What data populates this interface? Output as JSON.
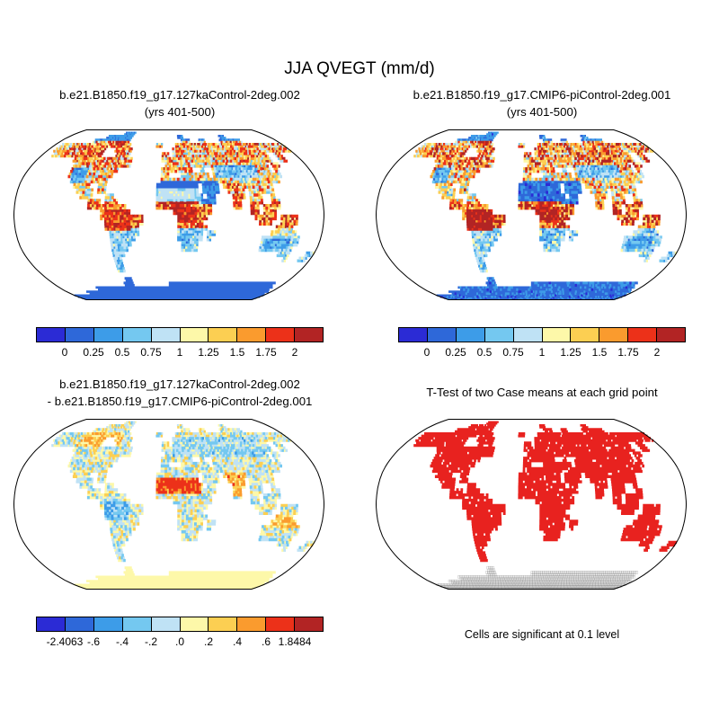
{
  "figure": {
    "title": "JJA QVEGT (mm/d)",
    "significance_note": "Cells are significant at 0.1 level"
  },
  "panels": [
    {
      "title_line1": "b.e21.B1850.f19_g17.127kaControl-2deg.002",
      "title_line2": "(yrs 401-500)"
    },
    {
      "title_line1": "b.e21.B1850.f19_g17.CMIP6-piControl-2deg.001",
      "title_line2": "(yrs 401-500)"
    },
    {
      "title_line1": "b.e21.B1850.f19_g17.127kaControl-2deg.002",
      "title_line2": "- b.e21.B1850.f19_g17.CMIP6-piControl-2deg.001"
    },
    {
      "title_line1": "T-Test of two Case means at each grid point",
      "title_line2": ""
    }
  ],
  "chart_data": {
    "type": "heatmap",
    "projection": "robinson",
    "variable": "QVEGT",
    "season": "JJA",
    "units": "mm/d",
    "colorbar_mean": {
      "tick_labels": [
        "0",
        "0.25",
        "0.5",
        "0.75",
        "1",
        "1.25",
        "1.5",
        "1.75",
        "2"
      ],
      "levels": [
        0,
        0.25,
        0.5,
        0.75,
        1,
        1.25,
        1.5,
        1.75,
        2
      ],
      "colors": [
        "#2b2bd5",
        "#2e68d9",
        "#3d9ce8",
        "#74c8f0",
        "#bfe2f5",
        "#fdf8a9",
        "#fccf52",
        "#fa9b2e",
        "#ec3119",
        "#b22424"
      ]
    },
    "colorbar_diff": {
      "tick_labels": [
        "-2.4063",
        "-.6",
        "-.4",
        "-.2",
        ".0",
        ".2",
        ".4",
        ".6",
        "1.8484"
      ],
      "levels": [
        -2.4063,
        -0.6,
        -0.4,
        -0.2,
        0,
        0.2,
        0.4,
        0.6,
        1.8484
      ],
      "min": -2.4063,
      "max": 1.8484,
      "colors": [
        "#2b2bd5",
        "#2e68d9",
        "#3d9ce8",
        "#74c8f0",
        "#bfe2f5",
        "#fdf8a9",
        "#fccf52",
        "#fa9b2e",
        "#ec3119",
        "#b22424"
      ]
    },
    "ttest": {
      "significant_color": "#e8221f",
      "significance_level": 0.1
    },
    "land_mask_runs": [
      [],
      [
        [
          19,
          22
        ]
      ],
      [
        [
          14,
          22
        ],
        [
          39,
          40
        ],
        [
          54,
          55
        ]
      ],
      [
        [
          11,
          22
        ],
        [
          40,
          42
        ],
        [
          46,
          47
        ],
        [
          53,
          59
        ]
      ],
      [
        [
          2,
          23
        ],
        [
          32,
          33
        ],
        [
          38,
          71
        ]
      ],
      [
        [
          2,
          16
        ],
        [
          20,
          24
        ],
        [
          37,
          71
        ]
      ],
      [
        [
          3,
          16
        ],
        [
          21,
          24
        ],
        [
          34,
          35
        ],
        [
          37,
          63
        ],
        [
          66,
          67
        ]
      ],
      [
        [
          10,
          25
        ],
        [
          34,
          35
        ],
        [
          36,
          63
        ],
        [
          66,
          67
        ]
      ],
      [
        [
          11,
          25
        ],
        [
          35,
          61
        ],
        [
          63,
          64
        ]
      ],
      [
        [
          11,
          22
        ],
        [
          34,
          41
        ],
        [
          44,
          44
        ],
        [
          47,
          61
        ],
        [
          63,
          63
        ]
      ],
      [
        [
          11,
          21
        ],
        [
          34,
          35
        ],
        [
          39,
          45
        ],
        [
          47,
          63
        ]
      ],
      [
        [
          12,
          20
        ],
        [
          34,
          62
        ]
      ],
      [
        [
          13,
          16
        ],
        [
          19,
          20
        ],
        [
          33,
          42
        ],
        [
          44,
          47
        ],
        [
          49,
          60
        ]
      ],
      [
        [
          14,
          17
        ],
        [
          19,
          20
        ],
        [
          33,
          42
        ],
        [
          44,
          47
        ],
        [
          50,
          53
        ],
        [
          55,
          60
        ]
      ],
      [
        [
          15,
          17
        ],
        [
          21,
          22
        ],
        [
          33,
          43
        ],
        [
          45,
          46
        ],
        [
          51,
          53
        ],
        [
          55,
          57
        ],
        [
          60,
          60
        ]
      ],
      [
        [
          17,
          19
        ],
        [
          21,
          23
        ],
        [
          33,
          46
        ],
        [
          51,
          52
        ],
        [
          55,
          57
        ],
        [
          60,
          61
        ]
      ],
      [
        [
          17,
          25
        ],
        [
          33,
          45
        ],
        [
          51,
          52
        ],
        [
          55,
          56
        ],
        [
          58,
          61
        ]
      ],
      [
        [
          20,
          26
        ],
        [
          37,
          45
        ],
        [
          55,
          56
        ],
        [
          58,
          60
        ]
      ],
      [
        [
          20,
          29
        ],
        [
          38,
          44
        ],
        [
          56,
          60
        ],
        [
          62,
          65
        ]
      ],
      [
        [
          21,
          29
        ],
        [
          38,
          43
        ],
        [
          57,
          59
        ],
        [
          62,
          65
        ]
      ],
      [
        [
          21,
          28
        ],
        [
          38,
          44
        ],
        [
          61,
          64
        ]
      ],
      [
        [
          22,
          28
        ],
        [
          38,
          43
        ],
        [
          45,
          46
        ],
        [
          60,
          65
        ]
      ],
      [
        [
          22,
          27
        ],
        [
          38,
          43
        ],
        [
          45,
          45
        ],
        [
          58,
          66
        ]
      ],
      [
        [
          22,
          26
        ],
        [
          39,
          42
        ],
        [
          58,
          66
        ]
      ],
      [
        [
          22,
          25
        ],
        [
          39,
          42
        ],
        [
          58,
          65
        ]
      ],
      [
        [
          22,
          24
        ],
        [
          63,
          65
        ],
        [
          70,
          71
        ]
      ],
      [
        [
          22,
          23
        ],
        [
          65,
          65
        ],
        [
          69,
          70
        ]
      ],
      [
        [
          22,
          23
        ]
      ],
      [
        [
          22,
          23
        ]
      ],
      [],
      [
        [
          23,
          24
        ]
      ],
      [
        [
          22,
          24
        ],
        [
          36,
          68
        ]
      ],
      [
        [
          12,
          69
        ]
      ],
      [
        [
          7,
          70
        ]
      ],
      [
        [
          0,
          71
        ]
      ],
      [
        [
          0,
          71
        ]
      ]
    ]
  }
}
